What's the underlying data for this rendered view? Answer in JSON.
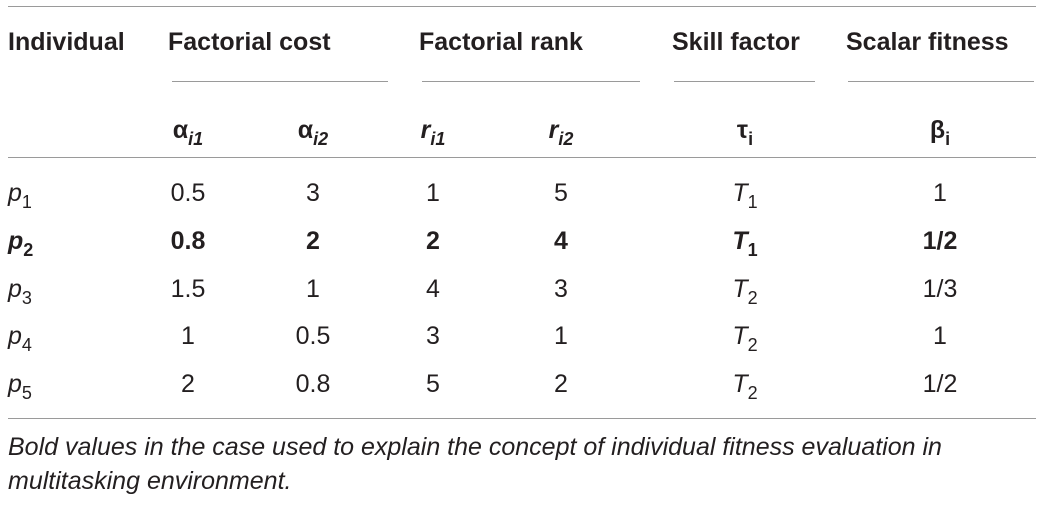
{
  "table": {
    "headers": {
      "individual": "Individual",
      "factorial_cost": "Factorial cost",
      "factorial_rank": "Factorial rank",
      "skill_factor": "Skill factor",
      "scalar_fitness": "Scalar fitness"
    },
    "subheaders": {
      "alpha_i1": {
        "base": "α",
        "sub": "i1"
      },
      "alpha_i2": {
        "base": "α",
        "sub": "i2"
      },
      "r_i1": {
        "base": "r",
        "sub": "i1"
      },
      "r_i2": {
        "base": "r",
        "sub": "i2"
      },
      "tau_i": {
        "base": "τ",
        "sub": "i"
      },
      "beta_i": {
        "base": "β",
        "sub": "i"
      }
    },
    "rows": [
      {
        "ind": "p",
        "ind_sub": "1",
        "a1": "0.5",
        "a2": "3",
        "r1": "1",
        "r2": "5",
        "tau": "T",
        "tau_sub": "1",
        "beta": "1",
        "bold": false
      },
      {
        "ind": "p",
        "ind_sub": "2",
        "a1": "0.8",
        "a2": "2",
        "r1": "2",
        "r2": "4",
        "tau": "T",
        "tau_sub": "1",
        "beta": "1/2",
        "bold": true
      },
      {
        "ind": "p",
        "ind_sub": "3",
        "a1": "1.5",
        "a2": "1",
        "r1": "4",
        "r2": "3",
        "tau": "T",
        "tau_sub": "2",
        "beta": "1/3",
        "bold": false
      },
      {
        "ind": "p",
        "ind_sub": "4",
        "a1": "1",
        "a2": "0.5",
        "r1": "3",
        "r2": "1",
        "tau": "T",
        "tau_sub": "2",
        "beta": "1",
        "bold": false
      },
      {
        "ind": "p",
        "ind_sub": "5",
        "a1": "2",
        "a2": "0.8",
        "r1": "5",
        "r2": "2",
        "tau": "T",
        "tau_sub": "2",
        "beta": "1/2",
        "bold": false
      }
    ]
  },
  "caption": "Bold values in the case used to explain the concept of individual fitness evaluation in multitasking environment."
}
